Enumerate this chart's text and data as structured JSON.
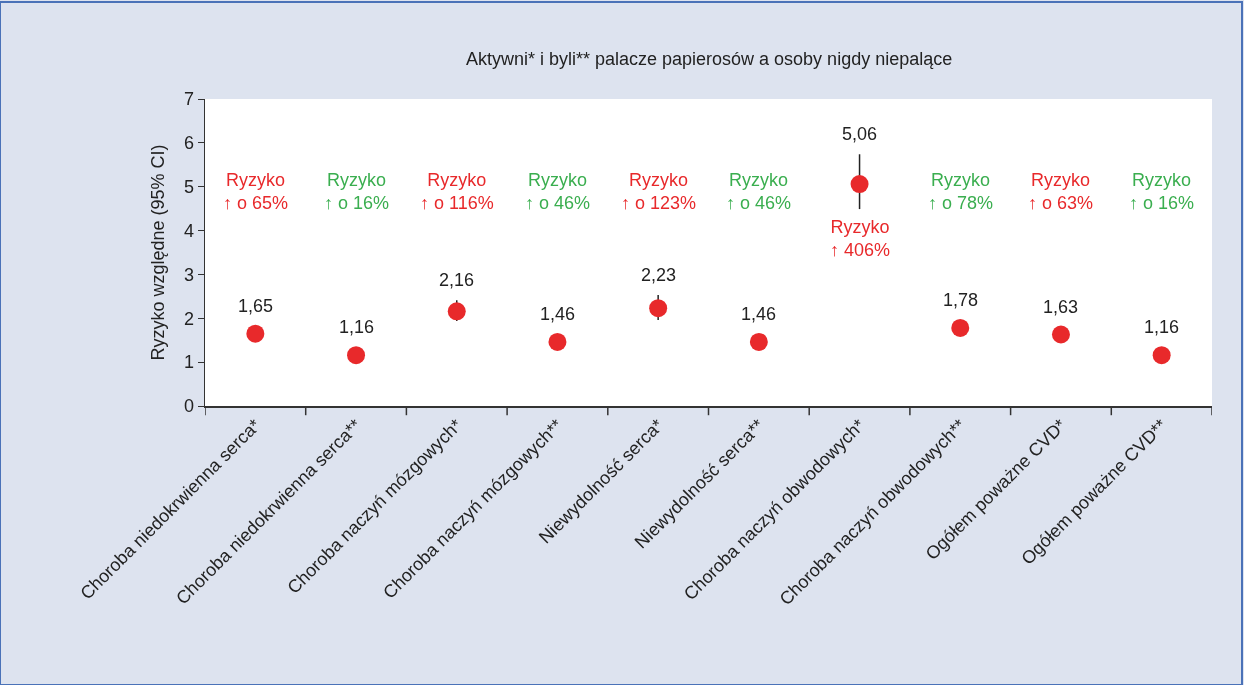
{
  "chart_data": {
    "type": "scatter",
    "title": "Aktywni* i byli** palacze papierosów a osoby nigdy niepalące",
    "ylabel": "Ryzyko względne (95% CI)",
    "categories": [
      "Choroba niedokrwienna serca*",
      "Choroba niedokrwienna serca**",
      "Choroba naczyń mózgowych*",
      "Choroba naczyń mózgowych**",
      "Niewydolność serca*",
      "Niewydolność serca**",
      "Choroba naczyń obwodowych*",
      "Choroba naczyń obwodowych**",
      "Ogółem poważne CVD*",
      "Ogółem poważne CVD**"
    ],
    "series": [
      {
        "color": "#e8292b",
        "values": [
          1.65,
          1.16,
          2.16,
          1.46,
          2.23,
          1.46,
          5.06,
          1.78,
          1.63,
          1.16
        ],
        "value_labels": [
          "1,65",
          "1,16",
          "2,16",
          "1,46",
          "2,23",
          "1,46",
          "5,06",
          "1,78",
          "1,63",
          "1,16"
        ],
        "errors": [
          null,
          null,
          [
            1.94,
            2.41
          ],
          null,
          [
            1.96,
            2.53
          ],
          null,
          [
            4.49,
            5.74
          ],
          null,
          null,
          null
        ]
      }
    ],
    "ylim": [
      0,
      7
    ],
    "yticks": [
      0,
      1,
      2,
      3,
      4,
      5,
      6,
      7
    ],
    "grid": false,
    "marker": "circle",
    "annotations": [
      "Ryzyko\n↑ o 65%",
      "Ryzyko\n↑ o 16%",
      "Ryzyko\n↑ o 116%",
      "Ryzyko\n↑ o 46%",
      "Ryzyko\n↑ o 123%",
      "Ryzyko\n↑ o 46%",
      "Ryzyko\n↑ 406%",
      "Ryzyko\n↑ o 78%",
      "Ryzyko\n↑ o 63%",
      "Ryzyko\n↑ o 16%"
    ]
  }
}
